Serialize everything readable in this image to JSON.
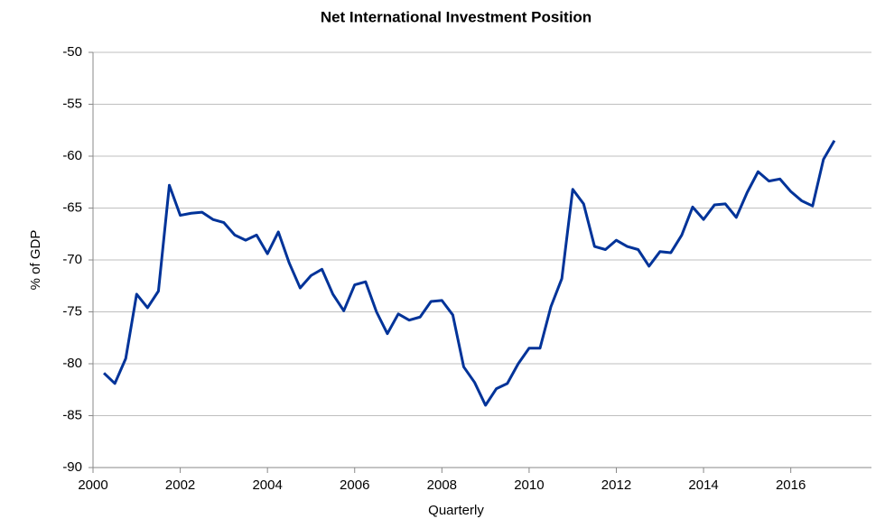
{
  "chart_data": {
    "type": "line",
    "title": "Net International Investment Position",
    "x_label": "Quarterly",
    "y_label": "% of GDP",
    "x": [
      2000.25,
      2000.5,
      2000.75,
      2001,
      2001.25,
      2001.5,
      2001.75,
      2002,
      2002.25,
      2002.5,
      2002.75,
      2003,
      2003.25,
      2003.5,
      2003.75,
      2004,
      2004.25,
      2004.5,
      2004.75,
      2005,
      2005.25,
      2005.5,
      2005.75,
      2006,
      2006.25,
      2006.5,
      2006.75,
      2007,
      2007.25,
      2007.5,
      2007.75,
      2008,
      2008.25,
      2008.5,
      2008.75,
      2009,
      2009.25,
      2009.5,
      2009.75,
      2010,
      2010.25,
      2010.5,
      2010.75,
      2011,
      2011.25,
      2011.5,
      2011.75,
      2012,
      2012.25,
      2012.5,
      2012.75,
      2013,
      2013.25,
      2013.5,
      2013.75,
      2014,
      2014.25,
      2014.5,
      2014.75,
      2015,
      2015.25,
      2015.5,
      2015.75,
      2016,
      2016.25,
      2016.5,
      2016.75,
      2017
    ],
    "series": [
      {
        "name": "Net International Investment Position",
        "color": "#003399",
        "values": [
          -80.9,
          -81.9,
          -79.5,
          -73.3,
          -74.6,
          -73.0,
          -62.8,
          -65.7,
          -65.5,
          -65.4,
          -66.1,
          -66.4,
          -67.6,
          -68.1,
          -67.6,
          -69.4,
          -67.3,
          -70.3,
          -72.7,
          -71.5,
          -70.9,
          -73.3,
          -74.9,
          -72.4,
          -72.1,
          -75.0,
          -77.1,
          -75.2,
          -75.8,
          -75.5,
          -74.0,
          -73.9,
          -75.3,
          -80.3,
          -81.8,
          -84.0,
          -82.4,
          -81.9,
          -80.0,
          -78.5,
          -78.5,
          -74.5,
          -71.8,
          -63.2,
          -64.6,
          -68.7,
          -69.0,
          -68.1,
          -68.7,
          -69.0,
          -70.6,
          -69.2,
          -69.3,
          -67.6,
          -64.9,
          -66.1,
          -64.7,
          -64.6,
          -65.9,
          -63.5,
          -61.5,
          -62.4,
          -62.2,
          -63.4,
          -64.3,
          -64.8,
          -60.3,
          -58.5
        ]
      }
    ],
    "xlim": [
      2000,
      2017.85
    ],
    "xticks": [
      2000,
      2002,
      2004,
      2006,
      2008,
      2010,
      2012,
      2014,
      2016
    ],
    "ylim": [
      -90,
      -50
    ],
    "yticks": [
      -90,
      -85,
      -80,
      -75,
      -70,
      -65,
      -60,
      -55,
      -50
    ],
    "grid": true
  }
}
